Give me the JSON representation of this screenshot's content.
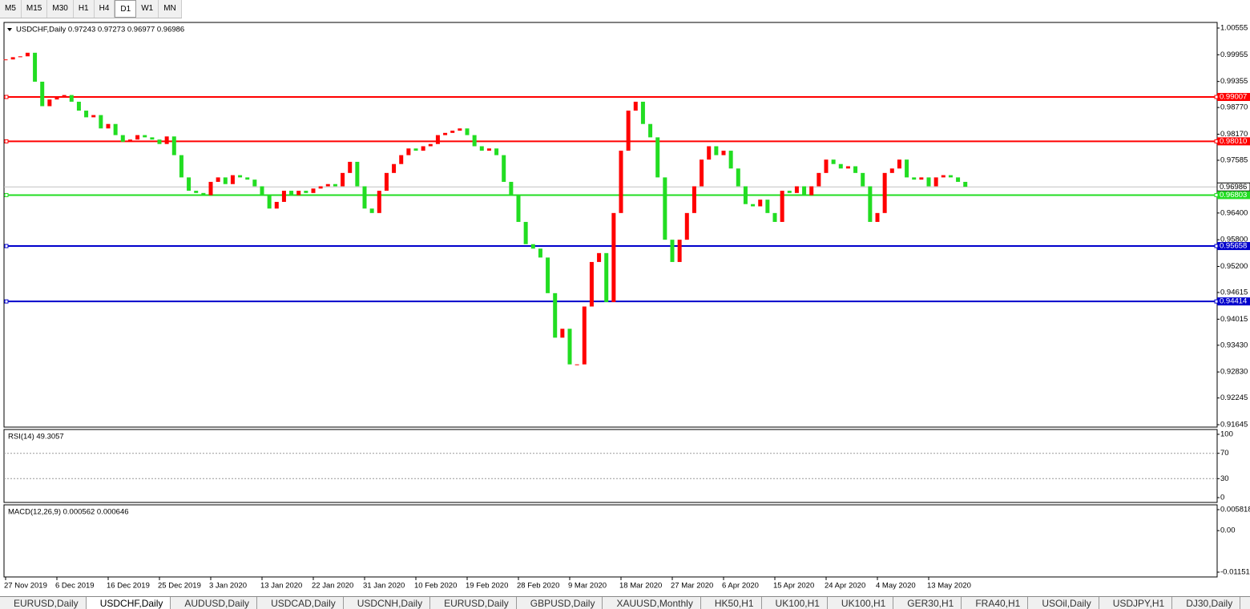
{
  "toolbar": {
    "timeframes": [
      "M5",
      "M15",
      "M30",
      "H1",
      "H4",
      "D1",
      "W1",
      "MN"
    ]
  },
  "chart_data": [
    {
      "type": "candlestick",
      "title": "USDCHF,Daily 0.97243 0.97273 0.96977 0.96986",
      "categories": [
        "27 Nov 2019",
        null,
        null,
        null,
        null,
        null,
        null,
        "6 Dec 2019",
        null,
        null,
        null,
        null,
        null,
        null,
        "16 Dec 2019",
        null,
        null,
        null,
        null,
        null,
        null,
        "25 Dec 2019",
        null,
        null,
        null,
        null,
        null,
        null,
        "3 Jan 2020",
        null,
        null,
        null,
        null,
        null,
        null,
        "13 Jan 2020",
        null,
        null,
        null,
        null,
        null,
        null,
        "22 Jan 2020",
        null,
        null,
        null,
        null,
        null,
        null,
        "31 Jan 2020",
        null,
        null,
        null,
        null,
        null,
        null,
        "10 Feb 2020",
        null,
        null,
        null,
        null,
        null,
        null,
        "19 Feb 2020",
        null,
        null,
        null,
        null,
        null,
        null,
        "28 Feb 2020",
        null,
        null,
        null,
        null,
        null,
        null,
        "9 Mar 2020",
        null,
        null,
        null,
        null,
        null,
        null,
        "18 Mar 2020",
        null,
        null,
        null,
        null,
        null,
        null,
        "27 Mar 2020",
        null,
        null,
        null,
        null,
        null,
        null,
        "6 Apr 2020",
        null,
        null,
        null,
        null,
        null,
        null,
        "15 Apr 2020",
        null,
        null,
        null,
        null,
        null,
        null,
        "24 Apr 2020",
        null,
        null,
        null,
        null,
        null,
        null,
        "4 May 2020",
        null,
        null,
        null,
        null,
        null,
        null,
        "13 May 2020",
        null,
        null,
        null,
        null,
        null
      ],
      "values": [
        0.9985,
        0.999,
        0.9992,
        1.0,
        0.9935,
        0.988,
        0.9895,
        0.99,
        0.9905,
        0.989,
        0.987,
        0.9855,
        0.986,
        0.983,
        0.984,
        0.9815,
        0.98,
        0.9805,
        0.9815,
        0.981,
        0.9805,
        0.9795,
        0.9812,
        0.977,
        0.972,
        0.969,
        0.9685,
        0.968,
        0.971,
        0.972,
        0.9705,
        0.9725,
        0.972,
        0.9715,
        0.97,
        0.968,
        0.965,
        0.9665,
        0.969,
        0.968,
        0.969,
        0.9685,
        0.9695,
        0.97,
        0.9705,
        0.97,
        0.973,
        0.9755,
        0.97,
        0.965,
        0.964,
        0.969,
        0.973,
        0.975,
        0.977,
        0.9785,
        0.978,
        0.979,
        0.9795,
        0.9815,
        0.982,
        0.9825,
        0.983,
        0.9815,
        0.979,
        0.978,
        0.9785,
        0.977,
        0.971,
        0.968,
        0.962,
        0.957,
        0.956,
        0.954,
        0.946,
        0.936,
        0.938,
        0.93,
        0.93,
        0.943,
        0.953,
        0.955,
        0.944,
        0.964,
        0.978,
        0.987,
        0.989,
        0.984,
        0.981,
        0.972,
        0.958,
        0.953,
        0.958,
        0.964,
        0.97,
        0.976,
        0.979,
        0.977,
        0.978,
        0.974,
        0.97,
        0.966,
        0.9655,
        0.967,
        0.964,
        0.962,
        0.969,
        0.9685,
        0.97,
        0.968,
        0.97,
        0.973,
        0.976,
        0.975,
        0.974,
        0.9745,
        0.973,
        0.97,
        0.962,
        0.964,
        0.973,
        0.974,
        0.976,
        0.972,
        0.9715,
        0.972,
        0.97,
        0.972,
        0.9725,
        0.972,
        0.971,
        0.9699
      ],
      "up_color": "#ff0000",
      "down_color": "#22dd22",
      "ylim": [
        0.91591,
        1.00681
      ],
      "yticks": [
        1.00555,
        0.99955,
        0.99355,
        {
          "value": 0.9877,
          "label": "0.98770"
        },
        {
          "value": 0.9817,
          "label": "0.98170"
        },
        0.97585,
        {
          "value": 0.964,
          "label": "0.96400"
        },
        {
          "value": 0.958,
          "label": "0.95800"
        },
        {
          "value": 0.952,
          "label": "0.95200"
        },
        0.94615,
        0.94015,
        {
          "value": 0.9343,
          "label": "0.93430"
        },
        {
          "value": 0.9283,
          "label": "0.92830"
        },
        0.92245,
        0.91645
      ],
      "levels": [
        {
          "value": 0.99007,
          "color": "#ff0000"
        },
        {
          "value": 0.9801,
          "label": "0.98010",
          "color": "#ff0000"
        },
        {
          "value": 0.96803,
          "color": "#22dd22"
        },
        {
          "value": 0.95658,
          "color": "#0000cc"
        },
        {
          "value": 0.94414,
          "color": "#0000cc"
        }
      ],
      "current_price": 0.96986
    },
    {
      "type": "indicator",
      "title": "RSI(14) 49.3057",
      "ylim": [
        -7.6,
        107.6
      ],
      "yticks": [
        100,
        70,
        30,
        0
      ],
      "dashed_levels": [
        70,
        30
      ]
    },
    {
      "type": "indicator",
      "title": "MACD(12,26,9) 0.000562 0.000646",
      "ylim": [
        -0.01284,
        0.00715
      ],
      "yticks": [
        0.005818,
        {
          "value": 0,
          "label": "0.00"
        },
        -0.01151
      ]
    }
  ],
  "tabs": [
    "EURUSD,Daily",
    "USDCHF,Daily",
    "AUDUSD,Daily",
    "USDCAD,Daily",
    "USDCNH,Daily",
    "EURUSD,Daily",
    "GBPUSD,Daily",
    "XAUUSD,Monthly",
    "HK50,H1",
    "UK100,H1",
    "UK100,H1",
    "GER30,H1",
    "FRA40,H1",
    "USOil,Daily",
    "USDJPY,H1",
    "DJ30,Daily"
  ]
}
